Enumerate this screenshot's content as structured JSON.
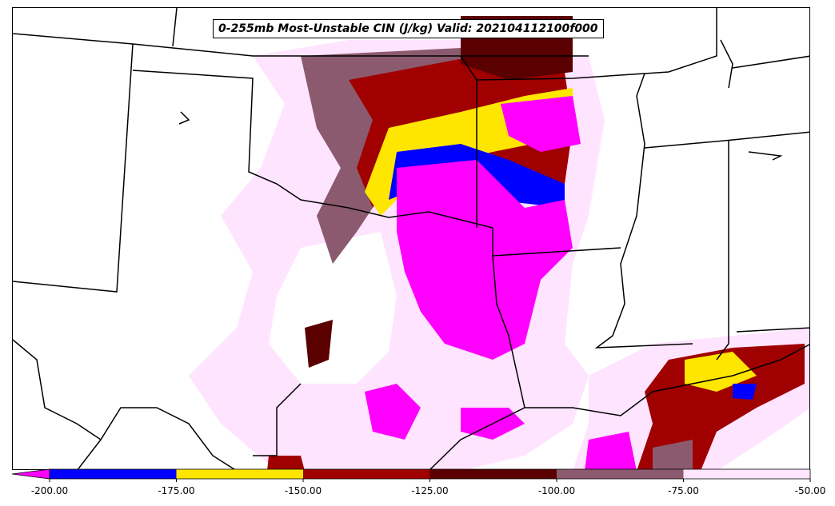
{
  "title": "0-255mb Most-Unstable CIN (J/kg) Valid: 202104112100f000",
  "colors": {
    "lt_-200": "#ff00ff",
    "-200_-175": "#0000ff",
    "-175_-150": "#ffe600",
    "-150_-125": "#a00000",
    "-125_-100": "#5a0000",
    "-100_-75": "#8c5a6e",
    "-75_-50": "#ffe4ff"
  },
  "colorbar": {
    "ticks": [
      "-200.00",
      "-175.00",
      "-150.00",
      "-125.00",
      "-100.00",
      "-75.00",
      "-50.00"
    ],
    "levels": [
      -200,
      -175,
      -150,
      -125,
      -100,
      -75,
      -50
    ],
    "extend": "min"
  }
}
